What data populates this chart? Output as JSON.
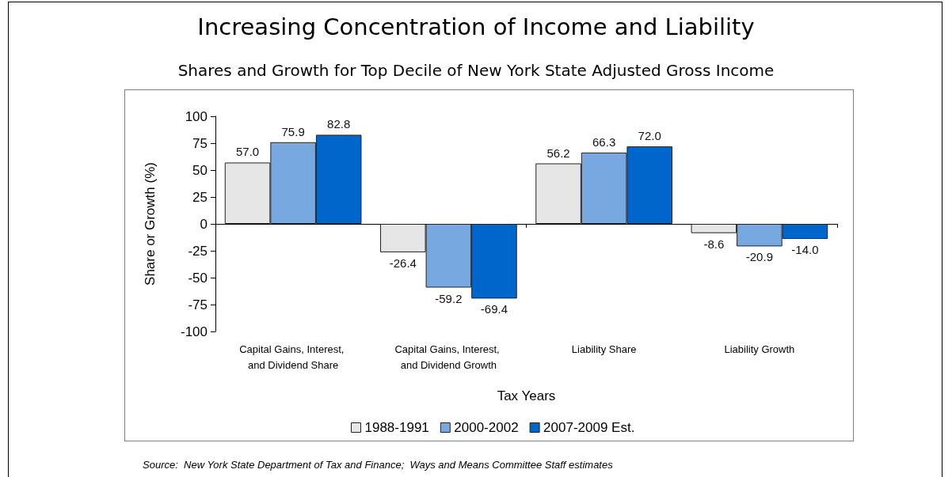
{
  "chart_data": {
    "type": "bar",
    "title": "Increasing Concentration of Income and Liability",
    "subtitle": "Shares and Growth for Top Decile of New York State Adjusted Gross Income",
    "xlabel": "Tax Years",
    "ylabel": "Share or Growth (%)",
    "categories": [
      "Capital Gains, Interest, and Dividend Share",
      "Capital Gains, Interest, and Dividend Growth",
      "Liability Share",
      "Liability Growth"
    ],
    "series": [
      {
        "name": "1988-1991",
        "color": "#e6e6e6",
        "values": [
          57.0,
          -26.4,
          56.2,
          -8.6
        ],
        "value_labels": [
          "57.0",
          "-26.4",
          "56.2",
          "-8.6"
        ]
      },
      {
        "name": "2000-2002",
        "color": "#78a8e0",
        "values": [
          75.9,
          -59.2,
          66.3,
          -20.9
        ],
        "value_labels": [
          "75.9",
          "-59.2",
          "66.3",
          "-20.9"
        ]
      },
      {
        "name": "2007-2009 Est.",
        "color": "#0066cc",
        "values": [
          82.8,
          -69.4,
          72.0,
          -14.0
        ],
        "value_labels": [
          "82.8",
          "-69.4",
          "72.0",
          "-14.0"
        ]
      }
    ],
    "ylim": [
      -100,
      100
    ],
    "yticks": [
      -100,
      -75,
      -50,
      -25,
      0,
      25,
      50,
      75,
      100
    ],
    "legend": "bottom",
    "annotations": [
      "Source:  New York State Department of Tax and Finance;  Ways and Means Committee Staff estimates"
    ]
  }
}
